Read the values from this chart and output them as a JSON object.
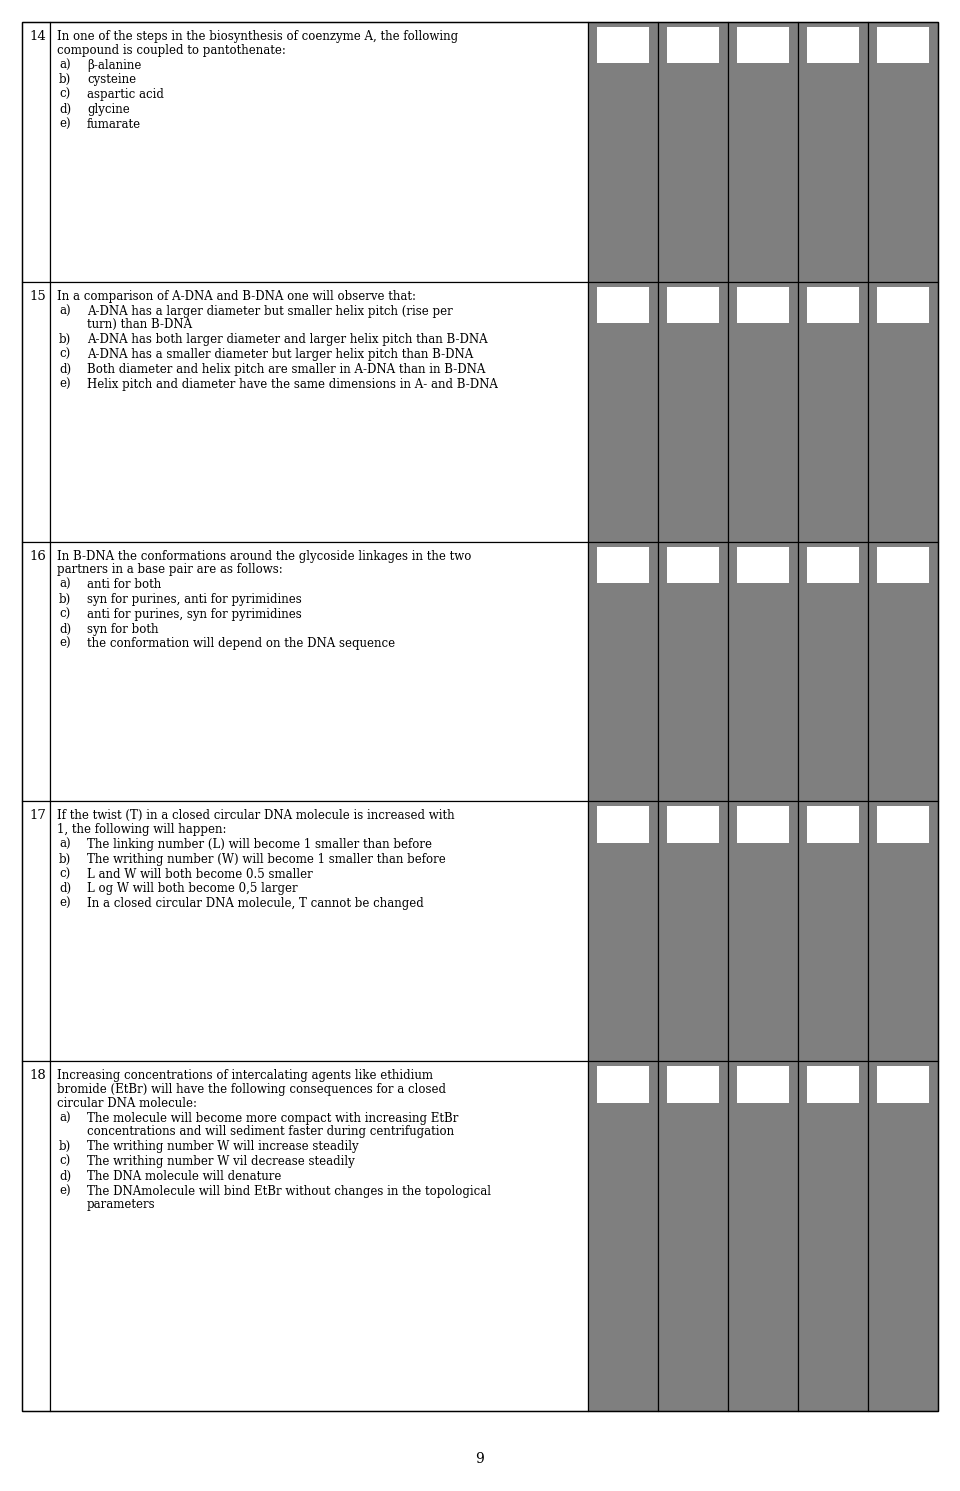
{
  "bg_color": "#ffffff",
  "border_color": "#000000",
  "gray_color": "#7f7f7f",
  "white_color": "#ffffff",
  "text_color": "#000000",
  "page_number": "9",
  "questions": [
    {
      "number": "14",
      "intro": "In one of the steps in the biosynthesis of coenzyme A, the following compound is coupled to pantothenate:",
      "options": [
        "a)\tβ-alanine",
        "b)\tcysteine",
        "c)\taspartic acid",
        "d)\tglycine",
        "e)\tfumarate"
      ]
    },
    {
      "number": "15",
      "intro": "In a comparison of A-DNA and B-DNA one will observe that:",
      "options": [
        "a)\tA-DNA has a larger diameter but smaller helix pitch (rise per turn) than B-DNA",
        "b)\tA-DNA has both larger diameter and larger helix pitch than B-DNA",
        "c)\tA-DNA has a smaller diameter but larger helix pitch than B-DNA",
        "d)\tBoth diameter and helix pitch are smaller in A-DNA than in B-DNA",
        "e)\tHelix pitch and diameter have the same dimensions in A- and B-DNA"
      ]
    },
    {
      "number": "16",
      "intro": "In B-DNA the conformations around the glycoside linkages in the two partners in a base pair are as follows:",
      "options": [
        "a)\tanti for both",
        "b)\tsyn for purines, anti for pyrimidines",
        "c)\tanti for purines, syn for pyrimidines",
        "d)\tsyn for both",
        "e)\tthe conformation will depend on the DNA sequence"
      ]
    },
    {
      "number": "17",
      "intro": "If the twist (T) in a closed circular DNA molecule is increased with 1, the following will happen:",
      "options": [
        "a)\tThe linking number (L) will become 1 smaller than before",
        "b)\tThe writhing number (W) will become 1 smaller than before",
        "c)\tL and W will both become 0.5 smaller",
        "d)\tL og W will both become 0,5 larger",
        "e)\tIn a closed circular DNA molecule, T cannot be changed"
      ]
    },
    {
      "number": "18",
      "intro": "Increasing concentrations of intercalating agents like ethidium bromide (EtBr) will have the following consequences for a closed circular DNA molecule:",
      "options": [
        "a)\tThe molecule will become more compact with increasing EtBr concentrations and will sediment faster during centrifugation",
        "b)\tThe writhing number W will increase steadily",
        "c)\tThe writhing number W vil decrease steadily",
        "d)\tThe DNA molecule will denature",
        "e)\tThe DNAmolecule will bind EtBr without changes in the topological parameters"
      ]
    }
  ],
  "num_answer_cols": 5
}
